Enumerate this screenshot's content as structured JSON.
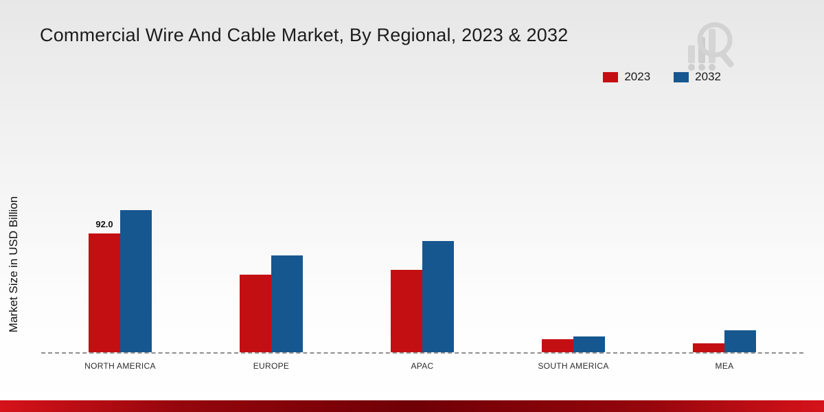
{
  "title": "Commercial Wire And Cable Market, By Regional, 2023 & 2032",
  "ylabel": "Market Size in USD Billion",
  "legend": [
    {
      "label": "2023",
      "color": "#c40f12"
    },
    {
      "label": "2032",
      "color": "#17578f"
    }
  ],
  "chart_data": {
    "type": "bar",
    "title": "Commercial Wire And Cable Market, By Regional, 2023 & 2032",
    "categories": [
      "NORTH AMERICA",
      "EUROPE",
      "APAC",
      "SOUTH AMERICA",
      "MEA"
    ],
    "series": [
      {
        "name": "2023",
        "color": "#c40f12",
        "values": [
          92.0,
          60,
          64,
          10,
          7
        ]
      },
      {
        "name": "2032",
        "color": "#17578f",
        "values": [
          110,
          75,
          86,
          12,
          17
        ]
      }
    ],
    "annotations": [
      {
        "text": "92.0",
        "category_index": 0,
        "series_index": 0
      }
    ],
    "xlabel": "",
    "ylabel": "Market Size in USD Billion",
    "ylim": [
      0,
      167
    ],
    "grid": false,
    "legend_position": "top-right",
    "baseline_style": "dashed"
  }
}
